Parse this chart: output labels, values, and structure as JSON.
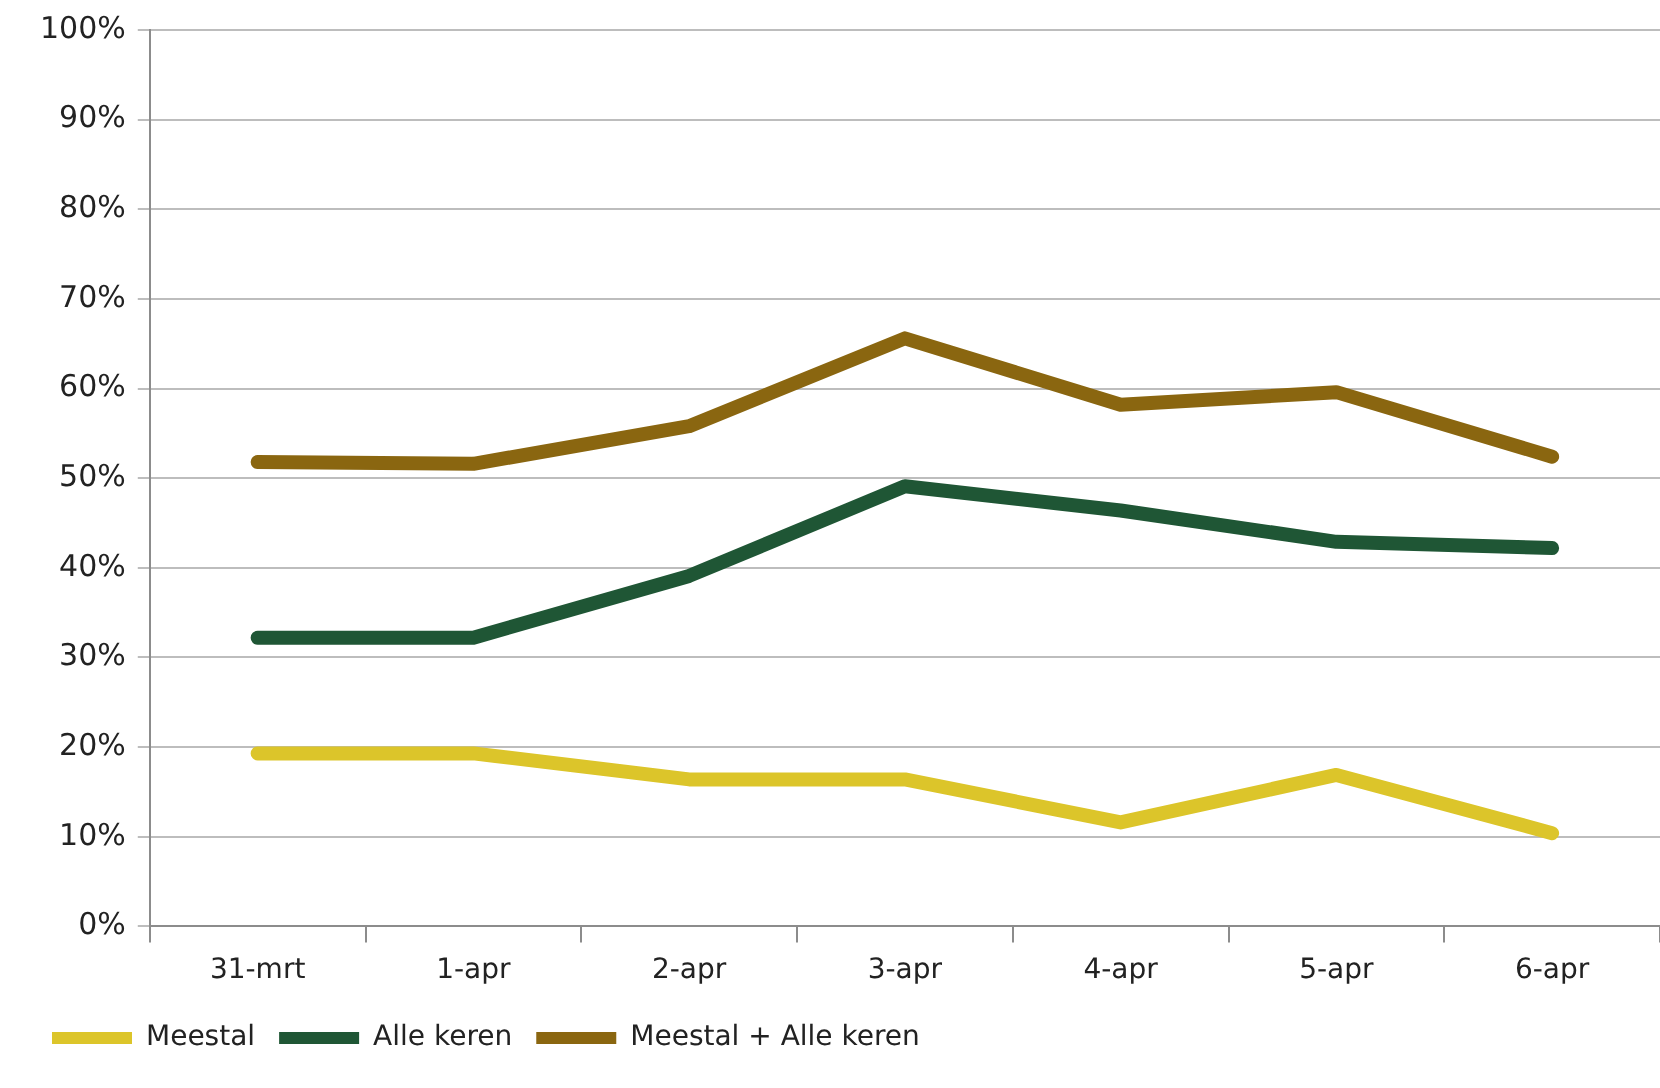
{
  "chart_data": {
    "type": "line",
    "categories": [
      "31-mrt",
      "1-apr",
      "2-apr",
      "3-apr",
      "4-apr",
      "5-apr",
      "6-apr"
    ],
    "series": [
      {
        "name": "Meestal",
        "color": "#dcc52a",
        "values": [
          19.3,
          19.3,
          16.4,
          16.4,
          11.6,
          16.9,
          10.4
        ]
      },
      {
        "name": "Alle keren",
        "color": "#1f5635",
        "values": [
          32.2,
          32.2,
          39.1,
          49.1,
          46.4,
          42.9,
          42.2
        ]
      },
      {
        "name": "Meestal + Alle keren",
        "color": "#8a6610",
        "values": [
          51.8,
          51.6,
          55.8,
          65.6,
          58.2,
          59.6,
          52.4
        ]
      }
    ],
    "ylim": [
      0,
      100
    ],
    "yticks": [
      {
        "value": 0,
        "label": "0%"
      },
      {
        "value": 10,
        "label": "10%"
      },
      {
        "value": 20,
        "label": "20%"
      },
      {
        "value": 30,
        "label": "30%"
      },
      {
        "value": 40,
        "label": "40%"
      },
      {
        "value": 50,
        "label": "50%"
      },
      {
        "value": 60,
        "label": "60%"
      },
      {
        "value": 70,
        "label": "70%"
      },
      {
        "value": 80,
        "label": "80%"
      },
      {
        "value": 90,
        "label": "90%"
      },
      {
        "value": 100,
        "label": "100%"
      }
    ],
    "grid": "y",
    "legend": "bottom",
    "marker": "none",
    "line_style": "solid"
  }
}
